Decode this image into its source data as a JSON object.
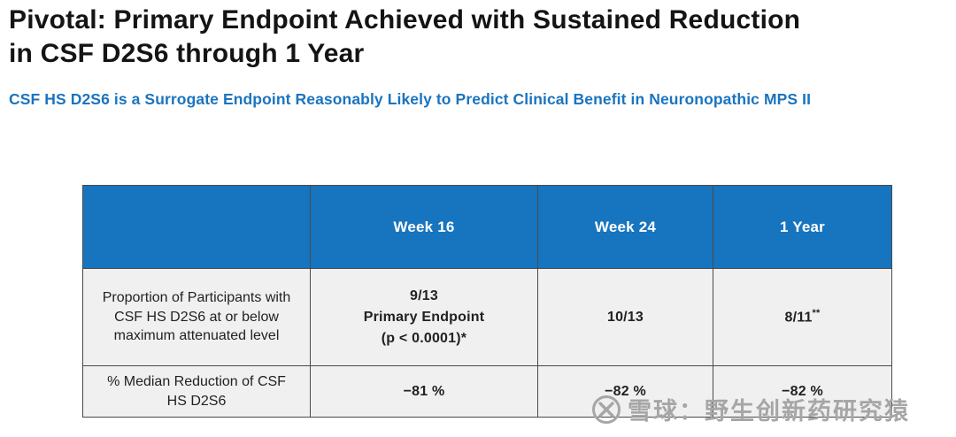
{
  "slide": {
    "title": "Pivotal: Primary Endpoint Achieved with Sustained Reduction\nin CSF D2S6 through 1 Year",
    "subtitle": "CSF HS D2S6 is a Surrogate Endpoint Reasonably Likely to Predict Clinical Benefit in Neuronopathic MPS II"
  },
  "table": {
    "headers": [
      "",
      "Week 16",
      "Week 24",
      "1 Year"
    ],
    "rows": [
      {
        "label": "Proportion of Participants with CSF HS D2S6 at or below maximum attenuated level",
        "week16": "9/13\nPrimary Endpoint\n(p < 0.0001)*",
        "week24": "10/13",
        "year1": "8/11",
        "year1_sup": "**"
      },
      {
        "label": "% Median Reduction of CSF HS D2S6",
        "week16": "−81 %",
        "week24": "−82 %",
        "year1": "−82 %"
      }
    ]
  },
  "watermark": {
    "text": "雪球：野生创新药研究猿",
    "logo": "xueqiu-logo"
  },
  "colors": {
    "header_blue": "#1774BE",
    "subtitle_blue": "#1B74BF",
    "body_row_bg": "#F1F0F1",
    "border_gray": "#4A4A4A",
    "watermark_gray": "#A6A6A6",
    "title_black": "#141414"
  }
}
